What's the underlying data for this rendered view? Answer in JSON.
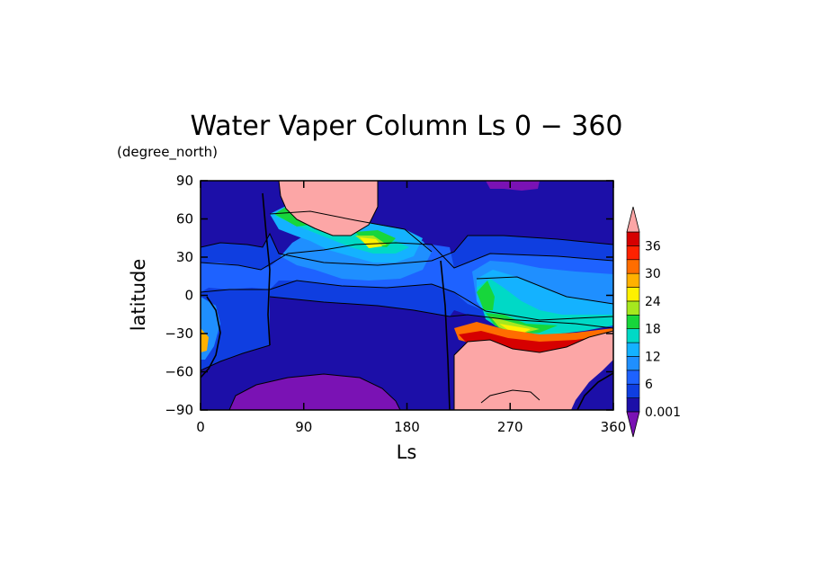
{
  "chart_data": {
    "type": "heatmap",
    "title": "Water Vaper Column Ls 0 − 360",
    "y_units": "(degree_north)",
    "xlabel": "Ls",
    "ylabel": "latitude",
    "xlim": [
      0,
      360
    ],
    "ylim": [
      -90,
      90
    ],
    "x_ticks": [
      {
        "value": 0,
        "label": "0"
      },
      {
        "value": 90,
        "label": "90"
      },
      {
        "value": 180,
        "label": "180"
      },
      {
        "value": 270,
        "label": "270"
      },
      {
        "value": 360,
        "label": "360"
      }
    ],
    "y_ticks": [
      {
        "value": 90,
        "label": "90"
      },
      {
        "value": 60,
        "label": "60"
      },
      {
        "value": 30,
        "label": "30"
      },
      {
        "value": 0,
        "label": "0"
      },
      {
        "value": -30,
        "label": "−30"
      },
      {
        "value": -60,
        "label": "−60"
      },
      {
        "value": -90,
        "label": "−90"
      }
    ],
    "colorbar": {
      "levels": [
        0.001,
        3,
        6,
        9,
        12,
        15,
        18,
        21,
        24,
        27,
        30,
        33,
        36,
        39
      ],
      "labels": [
        {
          "value": 0.001,
          "label": "0.001"
        },
        {
          "value": 6,
          "label": "6"
        },
        {
          "value": 12,
          "label": "12"
        },
        {
          "value": 18,
          "label": "18"
        },
        {
          "value": 24,
          "label": "24"
        },
        {
          "value": 30,
          "label": "30"
        },
        {
          "value": 36,
          "label": "36"
        }
      ],
      "colors": [
        "#1c0fa8",
        "#0f3ee0",
        "#1e62ff",
        "#1f8fff",
        "#14b2ff",
        "#00d9c6",
        "#17d63b",
        "#a6e81e",
        "#fff100",
        "#ffb100",
        "#ff6d00",
        "#ff2200",
        "#d60000"
      ],
      "under_color": "#7a12b4",
      "over_color": "#fca6a6"
    },
    "regions": [
      {
        "name": "south-polar-low",
        "level": "<0.001",
        "x": [
          55,
          190
        ],
        "y": [
          -90,
          -65
        ]
      },
      {
        "name": "north-polar-low",
        "level": "<0.001",
        "x": [
          275,
          305
        ],
        "y": [
          85,
          90
        ]
      },
      {
        "name": "northern-summer-max",
        "level": ">39",
        "x": [
          80,
          170
        ],
        "y": [
          60,
          90
        ]
      },
      {
        "name": "southern-summer-max",
        "level": ">39",
        "x": [
          220,
          360
        ],
        "y": [
          -90,
          -40
        ]
      },
      {
        "name": "tropics-band-north",
        "level": "6-12",
        "x": [
          60,
          220
        ],
        "y": [
          0,
          60
        ]
      },
      {
        "name": "tropics-band-south",
        "level": "6-18",
        "x": [
          225,
          360
        ],
        "y": [
          -40,
          30
        ]
      }
    ]
  }
}
